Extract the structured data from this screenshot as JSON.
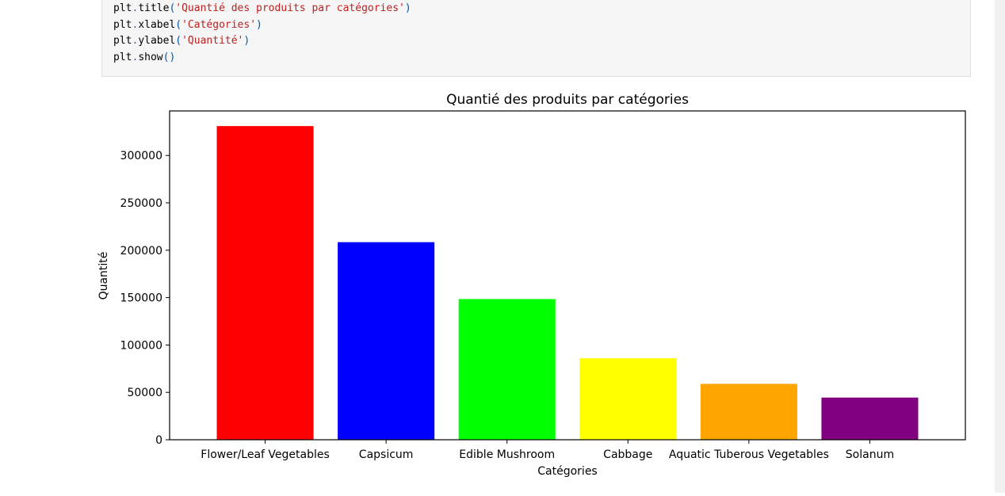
{
  "code_cell": {
    "lines": [
      {
        "obj": "plt",
        "fn": "title",
        "arg": "'Quantié des produits par catégories'"
      },
      {
        "obj": "plt",
        "fn": "xlabel",
        "arg": "'Catégories'"
      },
      {
        "obj": "plt",
        "fn": "ylabel",
        "arg": "'Quantité'"
      },
      {
        "obj": "plt",
        "fn": "show",
        "arg": ""
      }
    ]
  },
  "chart_data": {
    "type": "bar",
    "title": "Quantié des produits par catégories",
    "xlabel": "Catégories",
    "ylabel": "Quantité",
    "categories": [
      "Flower/Leaf Vegetables",
      "Capsicum",
      "Edible Mushroom",
      "Cabbage",
      "Aquatic Tuberous Vegetables",
      "Solanum"
    ],
    "values": [
      331000,
      208500,
      148500,
      86000,
      59000,
      44500
    ],
    "colors": [
      "#ff0000",
      "#0000ff",
      "#00ff00",
      "#ffff00",
      "#ffa500",
      "#800080"
    ],
    "ylim": [
      0,
      347000
    ],
    "yticks": [
      0,
      50000,
      100000,
      150000,
      200000,
      250000,
      300000
    ],
    "yticklabels": [
      "0",
      "50000",
      "100000",
      "150000",
      "200000",
      "250000",
      "300000"
    ],
    "grid": false,
    "legend": "none"
  }
}
